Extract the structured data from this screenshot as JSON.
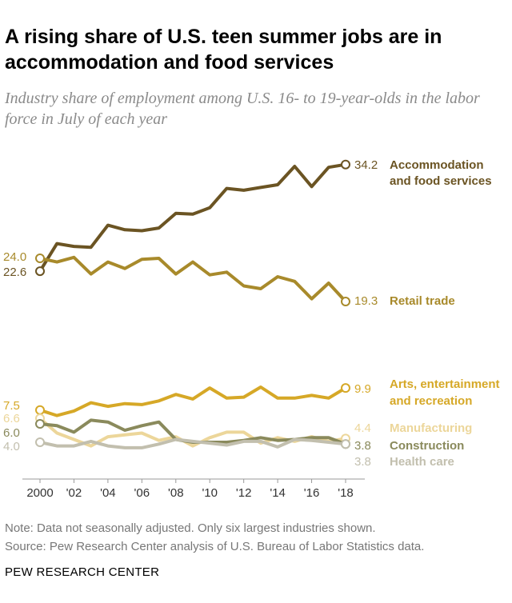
{
  "title": "A rising share of U.S. teen summer jobs are in accommodation and food services",
  "subtitle": "Industry share of employment among U.S. 16- to 19-year-olds in the labor force in July of each year",
  "note": "Note: Data not seasonally adjusted. Only six largest industries shown.",
  "source": "Source: Pew Research Center analysis of U.S. Bureau of Labor Statistics data.",
  "brand": "PEW RESEARCH CENTER",
  "chart_data": {
    "type": "line",
    "x": [
      2000,
      2001,
      2002,
      2003,
      2004,
      2005,
      2006,
      2007,
      2008,
      2009,
      2010,
      2011,
      2012,
      2013,
      2014,
      2015,
      2016,
      2017,
      2018
    ],
    "tick_labels": [
      "2000",
      "'02",
      "'04",
      "'06",
      "'08",
      "'10",
      "'12",
      "'14",
      "'16",
      "'18"
    ],
    "ylim": [
      0,
      36
    ],
    "grid": false,
    "series": [
      {
        "name": "Accommodation and food services",
        "label_lines": [
          "Accommodation",
          "and food services"
        ],
        "color": "#6b5423",
        "start_label": "22.6",
        "end_label": "34.2",
        "values": [
          22.6,
          25.6,
          25.3,
          25.2,
          27.6,
          27.1,
          27.0,
          27.3,
          28.9,
          28.8,
          29.5,
          31.6,
          31.4,
          31.7,
          32.0,
          34.0,
          31.8,
          33.9,
          34.2
        ]
      },
      {
        "name": "Retail trade",
        "label_lines": [
          "Retail trade"
        ],
        "color": "#a88a2b",
        "start_label": "24.0",
        "end_label": "19.3",
        "values": [
          24.0,
          23.6,
          24.1,
          22.3,
          23.6,
          22.9,
          23.9,
          24.0,
          22.3,
          23.6,
          22.2,
          22.5,
          21.0,
          20.7,
          22.0,
          21.5,
          19.6,
          21.3,
          19.3
        ]
      },
      {
        "name": "Arts, entertainment and recreation",
        "label_lines": [
          "Arts, entertainment",
          "and recreation"
        ],
        "color": "#d6a827",
        "start_label": "7.5",
        "end_label": "9.9",
        "values": [
          7.5,
          6.9,
          7.4,
          8.3,
          7.9,
          8.2,
          8.1,
          8.5,
          9.2,
          8.7,
          9.9,
          8.8,
          8.9,
          10.0,
          8.8,
          8.8,
          9.1,
          8.8,
          9.9
        ]
      },
      {
        "name": "Manufacturing",
        "label_lines": [
          "Manufacturing"
        ],
        "color": "#ecd69a",
        "start_label": "6.6",
        "end_label": "4.4",
        "values": [
          6.6,
          5.0,
          4.3,
          3.6,
          4.6,
          4.8,
          5.0,
          4.2,
          4.6,
          3.6,
          4.5,
          5.1,
          5.1,
          3.9,
          4.5,
          4.1,
          4.6,
          4.1,
          4.4
        ]
      },
      {
        "name": "Construction",
        "label_lines": [
          "Construction"
        ],
        "color": "#8a8a5c",
        "start_label": "6.0",
        "end_label": "3.8",
        "values": [
          6.0,
          5.8,
          5.1,
          6.4,
          6.2,
          5.3,
          5.8,
          6.2,
          4.3,
          4.0,
          4.0,
          4.0,
          4.2,
          4.5,
          4.2,
          4.3,
          4.5,
          4.5,
          3.8
        ]
      },
      {
        "name": "Health care",
        "label_lines": [
          "Health care"
        ],
        "color": "#c2bfae",
        "start_label": "4.0",
        "end_label": "3.8",
        "values": [
          4.0,
          3.6,
          3.6,
          4.1,
          3.6,
          3.4,
          3.4,
          3.8,
          4.3,
          4.1,
          3.9,
          3.7,
          4.1,
          4.1,
          3.5,
          4.3,
          4.2,
          4.0,
          3.8
        ]
      }
    ]
  }
}
